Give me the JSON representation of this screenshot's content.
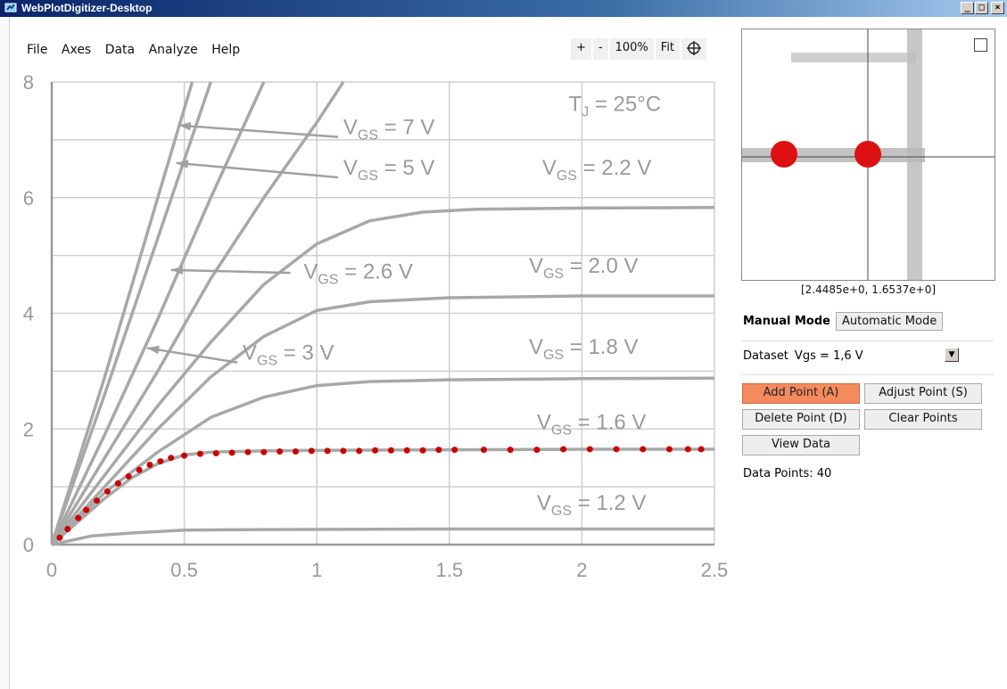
{
  "window": {
    "title": "WebPlotDigitizer-Desktop",
    "min_label": "_",
    "max_label": "□",
    "close_label": "×"
  },
  "menu": [
    "File",
    "Axes",
    "Data",
    "Analyze",
    "Help"
  ],
  "zoom": {
    "zoom_in": "+",
    "zoom_out": "-",
    "level": "100%",
    "fit": "Fit"
  },
  "panel": {
    "cursor_readout": "[2.4485e+0, 1.6537e+0]",
    "manual_mode_label": "Manual Mode",
    "automatic_mode_label": "Automatic Mode",
    "dataset_label": "Dataset",
    "dataset_value": "Vgs = 1,6 V",
    "add_point": "Add Point (A)",
    "adjust_point": "Adjust Point (S)",
    "delete_point": "Delete Point (D)",
    "clear_points": "Clear Points",
    "view_data": "View Data",
    "data_points_label": "Data Points:",
    "data_points_count": "40"
  },
  "colors": {
    "accent_active": "#f58a5e",
    "point": "#cc0000",
    "curve": "#a8a8a8",
    "grid": "#cfcfcf"
  },
  "chart_data": {
    "type": "line",
    "title": "",
    "annotation": "TJ = 25°C",
    "xlabel": "",
    "ylabel": "",
    "xlim": [
      0,
      2.5
    ],
    "ylim": [
      0,
      8
    ],
    "xticks": [
      "0",
      "0.5",
      "1",
      "1.5",
      "2",
      "2.5"
    ],
    "yticks": [
      "0",
      "2",
      "4",
      "6",
      "8"
    ],
    "series": [
      {
        "name": "VGS = 1.2 V",
        "x": [
          0,
          0.15,
          0.3,
          0.5,
          0.8,
          1.5,
          2.5
        ],
        "y": [
          0,
          0.15,
          0.2,
          0.25,
          0.26,
          0.27,
          0.27
        ]
      },
      {
        "name": "VGS = 1.6 V",
        "x": [
          0,
          0.1,
          0.2,
          0.3,
          0.4,
          0.5,
          0.6,
          0.8,
          1.0,
          1.5,
          2.0,
          2.5
        ],
        "y": [
          0,
          0.4,
          0.8,
          1.15,
          1.4,
          1.55,
          1.6,
          1.62,
          1.63,
          1.64,
          1.65,
          1.65
        ]
      },
      {
        "name": "VGS = 1.8 V",
        "x": [
          0,
          0.2,
          0.4,
          0.6,
          0.8,
          1.0,
          1.2,
          1.5,
          2.0,
          2.5
        ],
        "y": [
          0,
          0.9,
          1.6,
          2.2,
          2.55,
          2.75,
          2.82,
          2.85,
          2.87,
          2.88
        ]
      },
      {
        "name": "VGS = 2.0 V",
        "x": [
          0,
          0.2,
          0.4,
          0.6,
          0.8,
          1.0,
          1.2,
          1.5,
          2.0,
          2.5
        ],
        "y": [
          0,
          1.0,
          2.0,
          2.9,
          3.6,
          4.05,
          4.2,
          4.27,
          4.3,
          4.3
        ]
      },
      {
        "name": "VGS = 2.2 V",
        "x": [
          0,
          0.2,
          0.4,
          0.6,
          0.8,
          1.0,
          1.2,
          1.4,
          1.6,
          2.0,
          2.5
        ],
        "y": [
          0,
          1.2,
          2.4,
          3.5,
          4.5,
          5.2,
          5.6,
          5.75,
          5.8,
          5.82,
          5.83
        ]
      },
      {
        "name": "VGS = 2.6 V",
        "x": [
          0,
          0.2,
          0.4,
          0.6,
          0.8,
          1.0,
          1.1
        ],
        "y": [
          0,
          1.5,
          3.0,
          4.6,
          6.0,
          7.3,
          8.0
        ]
      },
      {
        "name": "VGS = 3 V",
        "x": [
          0,
          0.2,
          0.4,
          0.6,
          0.8
        ],
        "y": [
          0,
          1.9,
          3.9,
          6.0,
          8.0
        ]
      },
      {
        "name": "VGS = 5 V",
        "x": [
          0,
          0.2,
          0.4,
          0.6
        ],
        "y": [
          0,
          2.6,
          5.3,
          8.0
        ]
      },
      {
        "name": "VGS = 7 V",
        "x": [
          0,
          0.2,
          0.4,
          0.53
        ],
        "y": [
          0,
          2.9,
          6.0,
          8.0
        ]
      }
    ],
    "series_labels": [
      {
        "text": "VGS = 7 V",
        "x": 1.1,
        "y": 7.1
      },
      {
        "text": "VGS = 5 V",
        "x": 1.1,
        "y": 6.4
      },
      {
        "text": "VGS = 2.2 V",
        "x": 1.85,
        "y": 6.4
      },
      {
        "text": "VGS = 2.6 V",
        "x": 0.95,
        "y": 4.6
      },
      {
        "text": "VGS = 2.0 V",
        "x": 1.8,
        "y": 4.7
      },
      {
        "text": "VGS = 3 V",
        "x": 0.72,
        "y": 3.2
      },
      {
        "text": "VGS = 1.8 V",
        "x": 1.8,
        "y": 3.3
      },
      {
        "text": "VGS = 1.6 V",
        "x": 1.83,
        "y": 2.0
      },
      {
        "text": "VGS = 1.2 V",
        "x": 1.83,
        "y": 0.6
      }
    ],
    "digitized_points": {
      "name": "Vgs = 1,6 V",
      "count": 40,
      "x": [
        0.03,
        0.06,
        0.1,
        0.13,
        0.17,
        0.21,
        0.25,
        0.29,
        0.33,
        0.37,
        0.41,
        0.45,
        0.5,
        0.56,
        0.62,
        0.68,
        0.74,
        0.8,
        0.86,
        0.92,
        0.98,
        1.04,
        1.1,
        1.16,
        1.22,
        1.28,
        1.34,
        1.4,
        1.46,
        1.52,
        1.63,
        1.73,
        1.83,
        1.93,
        2.03,
        2.13,
        2.23,
        2.33,
        2.4,
        2.45
      ],
      "y": [
        0.12,
        0.27,
        0.46,
        0.6,
        0.76,
        0.92,
        1.06,
        1.18,
        1.29,
        1.38,
        1.44,
        1.5,
        1.54,
        1.57,
        1.58,
        1.59,
        1.6,
        1.6,
        1.61,
        1.61,
        1.62,
        1.62,
        1.62,
        1.62,
        1.63,
        1.63,
        1.63,
        1.63,
        1.64,
        1.64,
        1.64,
        1.64,
        1.64,
        1.65,
        1.65,
        1.65,
        1.65,
        1.65,
        1.65,
        1.65
      ]
    }
  }
}
